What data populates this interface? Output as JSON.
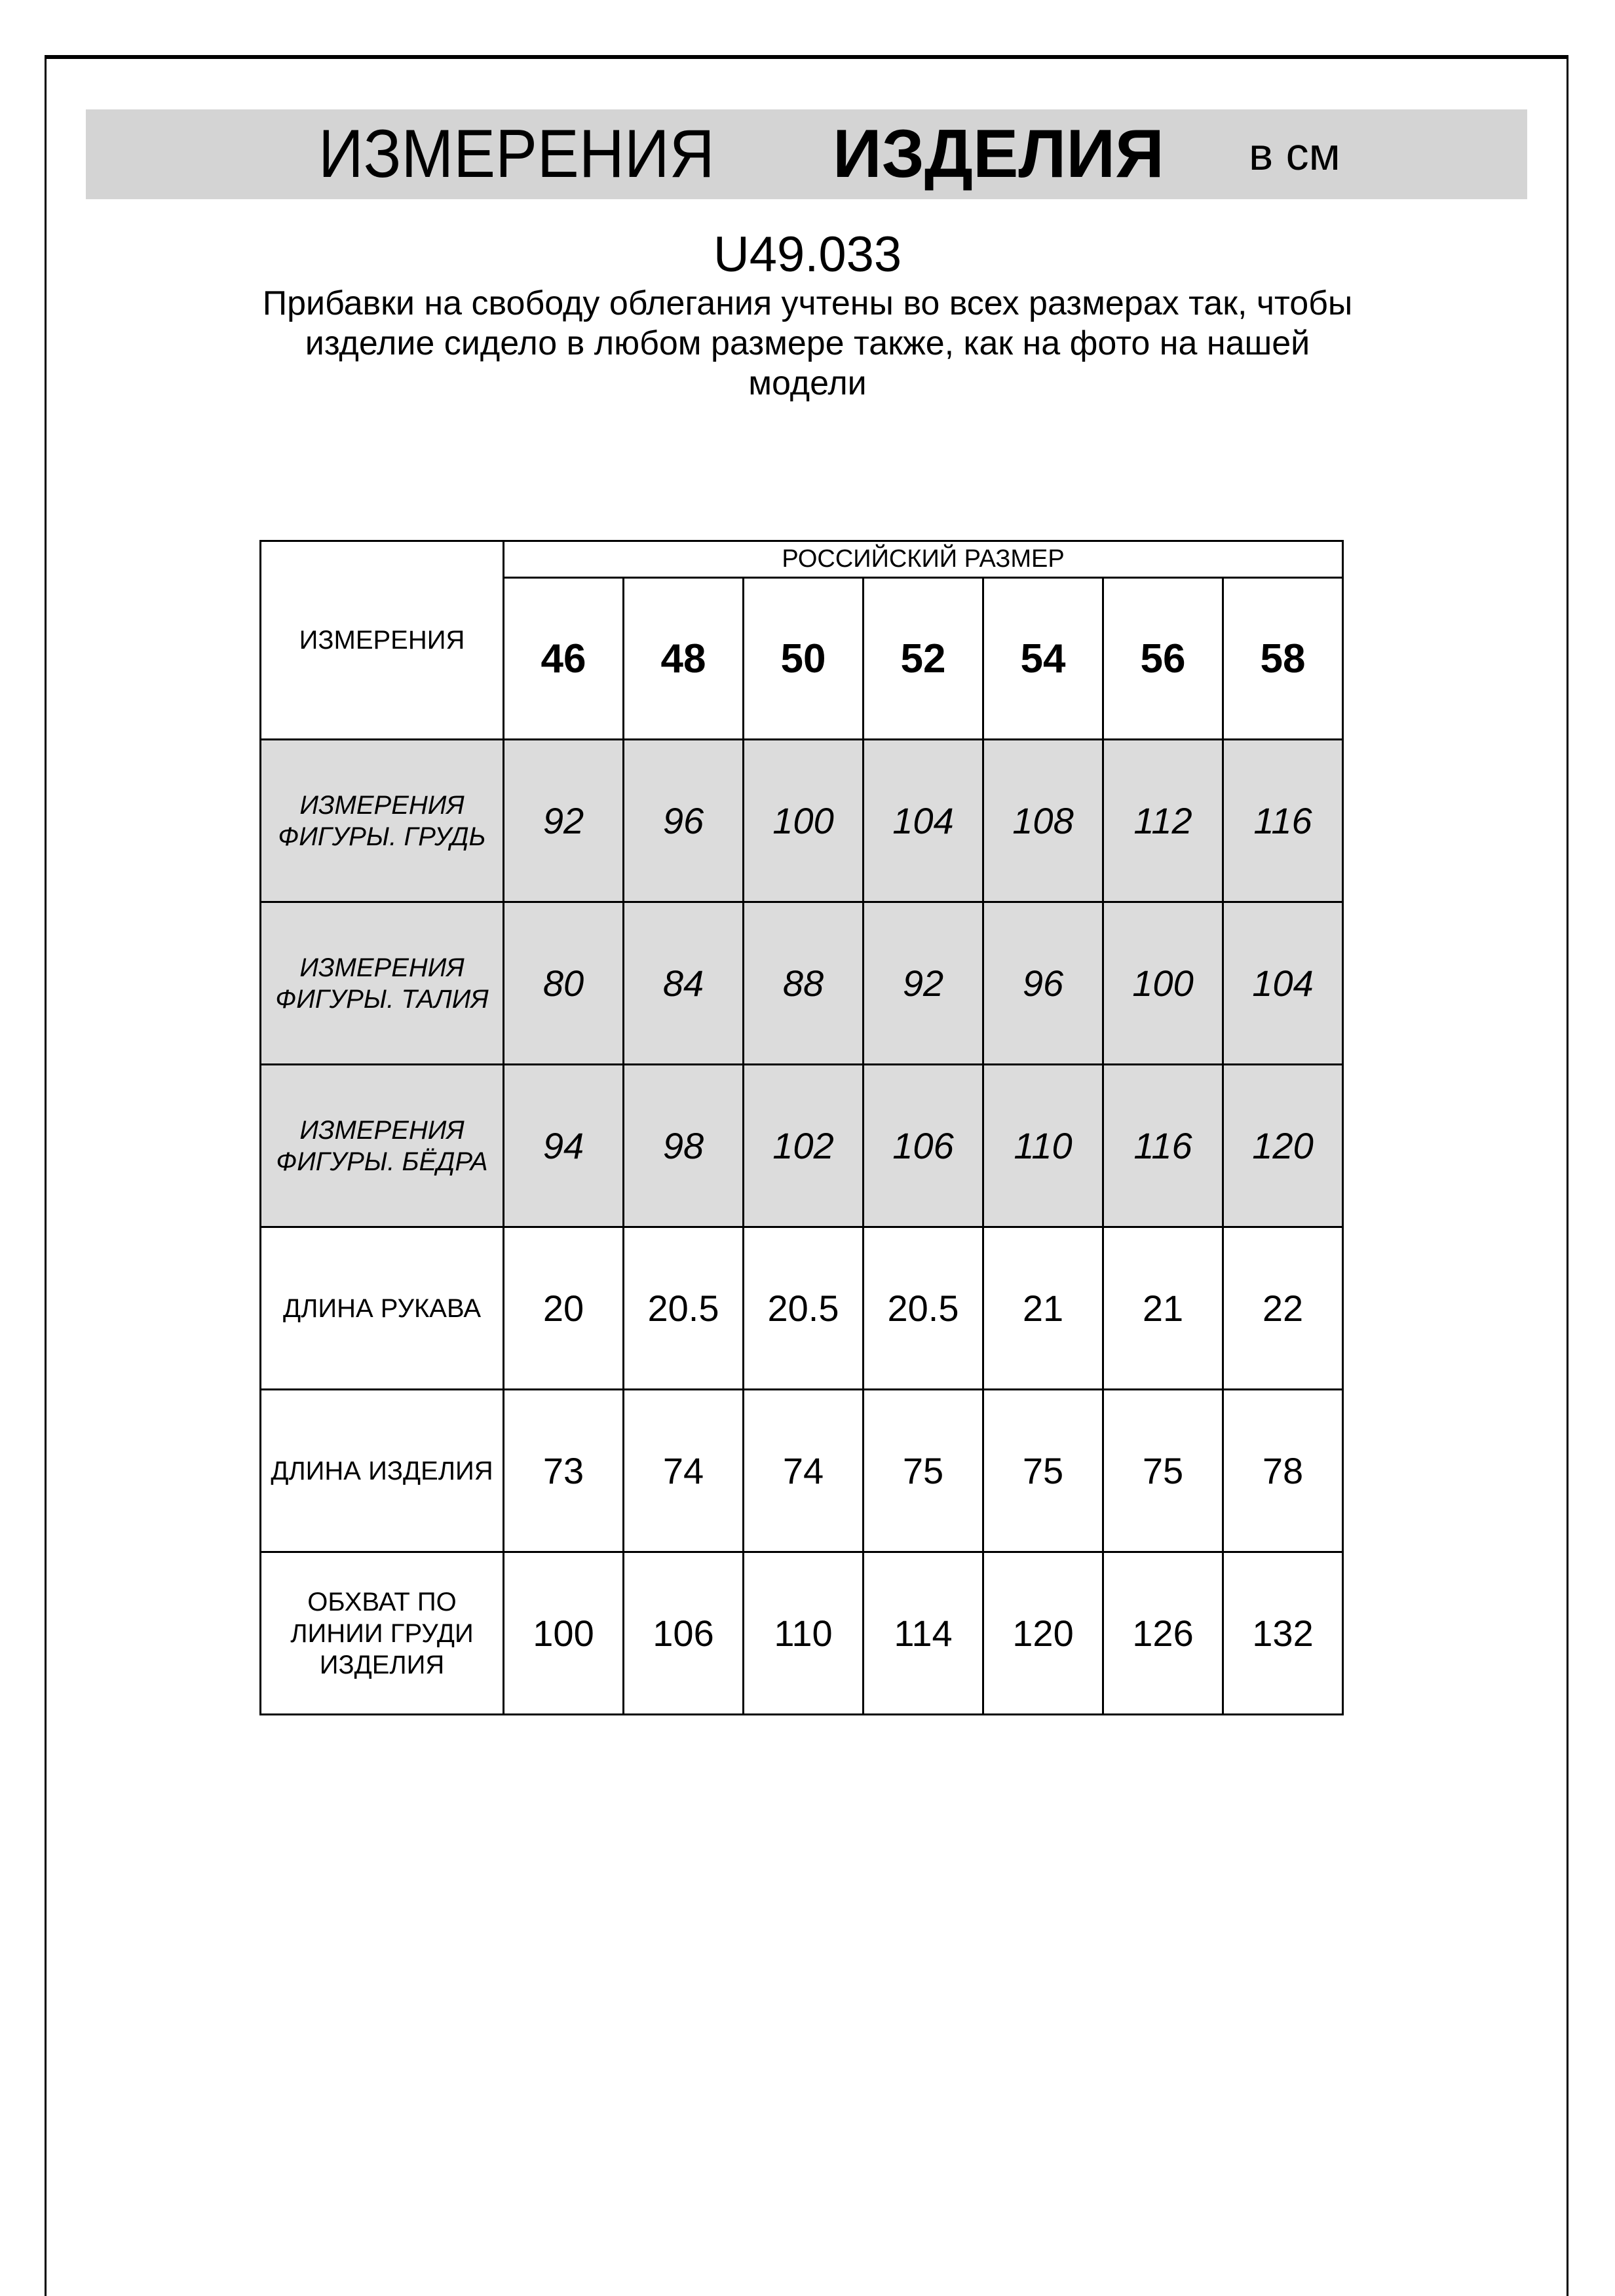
{
  "header": {
    "title_regular": "ИЗМЕРЕНИЯ",
    "title_bold": "ИЗДЕЛИЯ",
    "unit": "в см"
  },
  "product_code": "U49.033",
  "note": "Прибавки на свободу облегания учтены во всех размерах так, чтобы изделие сидело в любом размере также, как на фото на нашей модели",
  "table": {
    "corner_label": "ИЗМЕРЕНИЯ",
    "group_label": "РОССИЙСКИЙ РАЗМЕР",
    "sizes": [
      "46",
      "48",
      "50",
      "52",
      "54",
      "56",
      "58"
    ],
    "rows": [
      {
        "label": "ИЗМЕРЕНИЯ ФИГУРЫ. ГРУДЬ",
        "shaded": true,
        "values": [
          "92",
          "96",
          "100",
          "104",
          "108",
          "112",
          "116"
        ]
      },
      {
        "label": "ИЗМЕРЕНИЯ ФИГУРЫ. ТАЛИЯ",
        "shaded": true,
        "values": [
          "80",
          "84",
          "88",
          "92",
          "96",
          "100",
          "104"
        ]
      },
      {
        "label": "ИЗМЕРЕНИЯ ФИГУРЫ. БЁДРА",
        "shaded": true,
        "values": [
          "94",
          "98",
          "102",
          "106",
          "110",
          "116",
          "120"
        ]
      },
      {
        "label": "ДЛИНА РУКАВА",
        "shaded": false,
        "values": [
          "20",
          "20.5",
          "20.5",
          "20.5",
          "21",
          "21",
          "22"
        ]
      },
      {
        "label": "ДЛИНА ИЗДЕЛИЯ",
        "shaded": false,
        "values": [
          "73",
          "74",
          "74",
          "75",
          "75",
          "75",
          "78"
        ]
      },
      {
        "label": "ОБХВАТ ПО ЛИНИИ ГРУДИ ИЗДЕЛИЯ",
        "shaded": false,
        "values": [
          "100",
          "106",
          "110",
          "114",
          "120",
          "126",
          "132"
        ]
      }
    ]
  },
  "colors": {
    "band": "#d4d4d4",
    "shaded_row": "#dcdcdc"
  }
}
